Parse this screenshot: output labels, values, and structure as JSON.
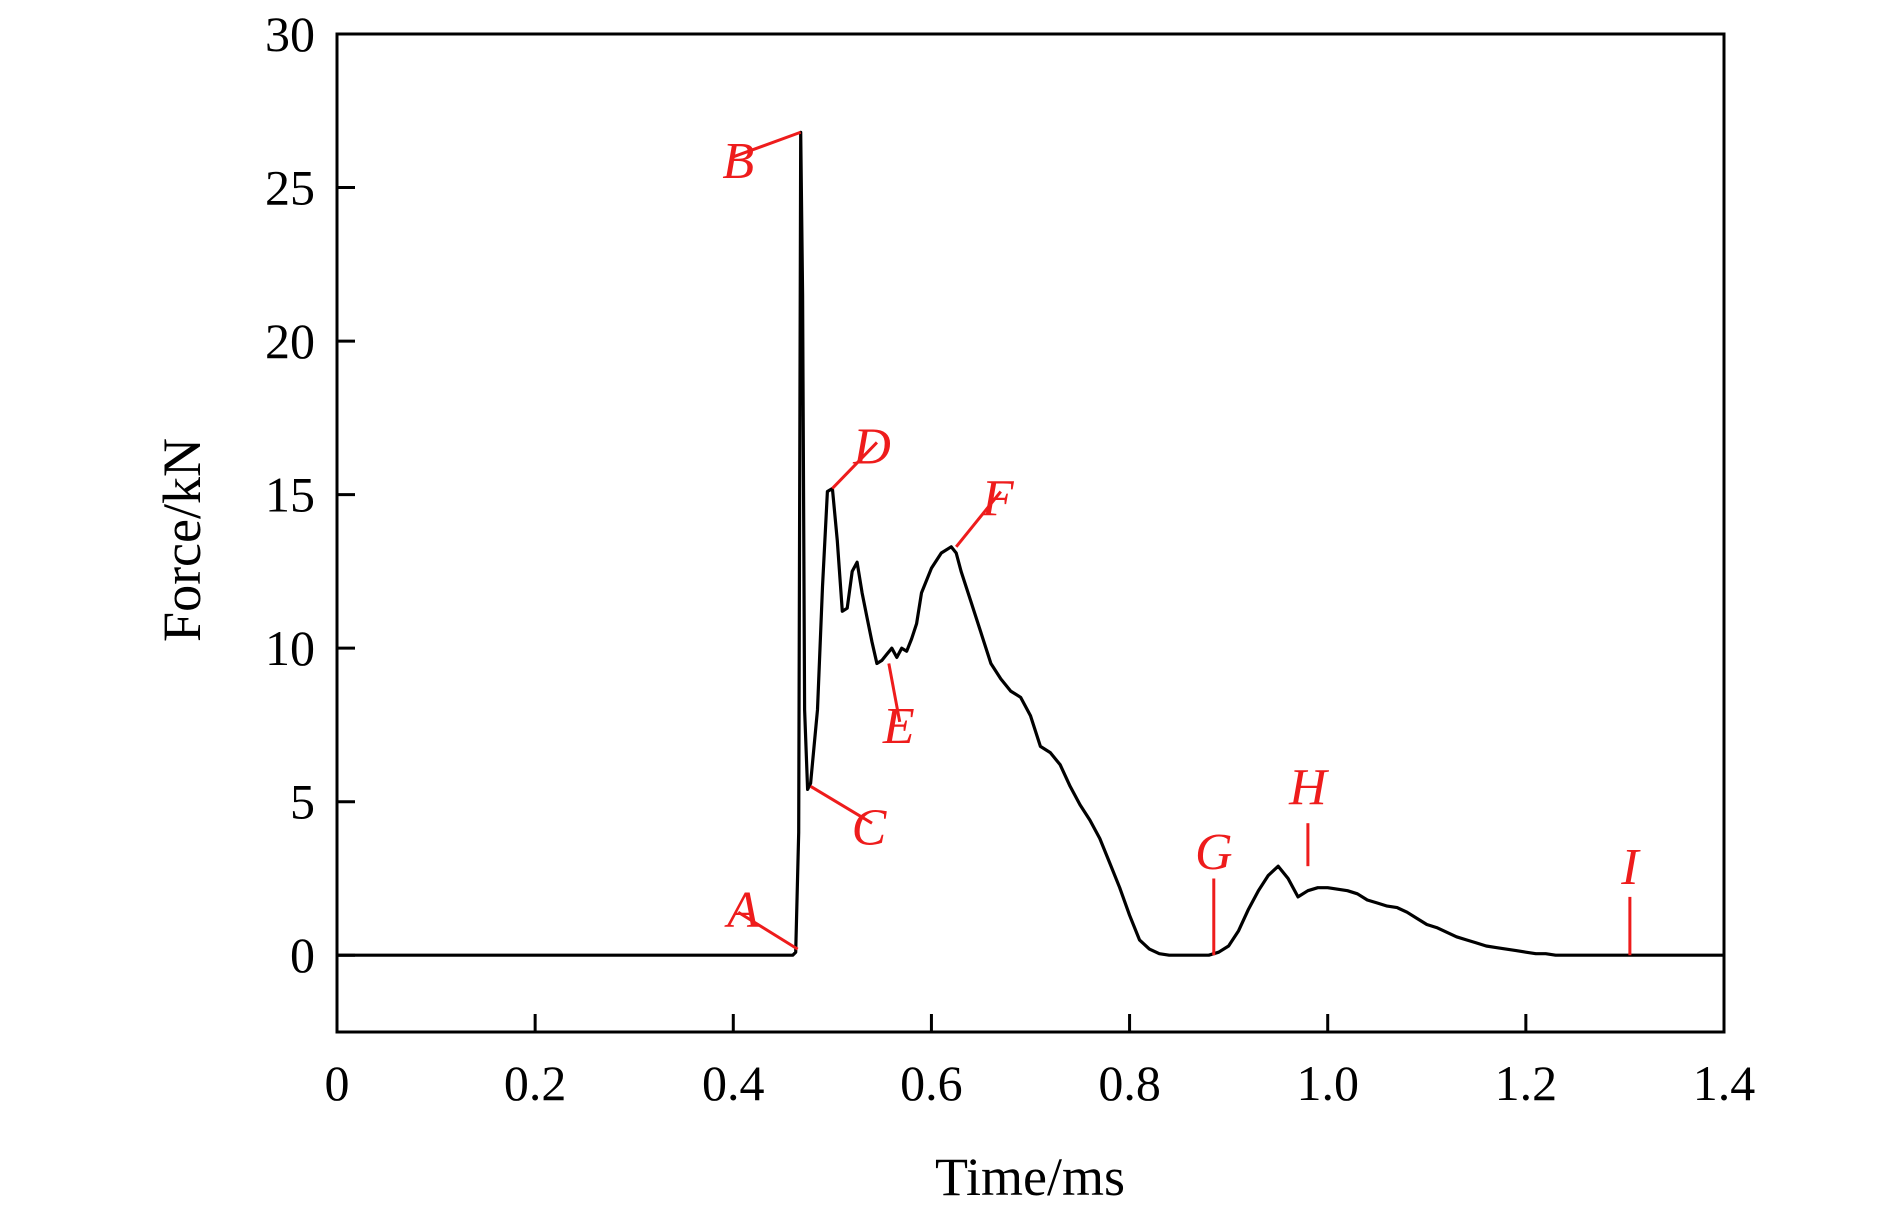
{
  "chart_data": {
    "type": "line",
    "xlabel": "Time/ms",
    "ylabel": "Force/kN",
    "xlim": [
      0,
      1.4
    ],
    "ylim": [
      -2.5,
      30
    ],
    "xticks": [
      0,
      0.2,
      0.4,
      0.6,
      0.8,
      1.0,
      1.2,
      1.4
    ],
    "xtick_labels": [
      "0",
      "0.2",
      "0.4",
      "0.6",
      "0.8",
      "1.0",
      "1.2",
      "1.4"
    ],
    "yticks": [
      0,
      5,
      10,
      15,
      20,
      25,
      30
    ],
    "ytick_labels": [
      "0",
      "5",
      "10",
      "15",
      "20",
      "25",
      "30"
    ],
    "grid": false,
    "line_color": "#000000",
    "annotation_color": "#ee1c1c",
    "series": [
      {
        "x": [
          0,
          0.46,
          0.463,
          0.466,
          0.468,
          0.47,
          0.472,
          0.475,
          0.478,
          0.485,
          0.49,
          0.495,
          0.5,
          0.505,
          0.51,
          0.515,
          0.52,
          0.525,
          0.53,
          0.535,
          0.54,
          0.545,
          0.55,
          0.555,
          0.56,
          0.565,
          0.57,
          0.575,
          0.58,
          0.585,
          0.59,
          0.6,
          0.61,
          0.62,
          0.625,
          0.63,
          0.64,
          0.65,
          0.66,
          0.67,
          0.68,
          0.69,
          0.7,
          0.71,
          0.72,
          0.73,
          0.74,
          0.75,
          0.76,
          0.77,
          0.78,
          0.79,
          0.8,
          0.81,
          0.82,
          0.83,
          0.84,
          0.85,
          0.86,
          0.87,
          0.88,
          0.89,
          0.9,
          0.91,
          0.92,
          0.93,
          0.94,
          0.95,
          0.96,
          0.97,
          0.98,
          0.99,
          1.0,
          1.01,
          1.02,
          1.03,
          1.04,
          1.05,
          1.06,
          1.07,
          1.08,
          1.09,
          1.1,
          1.11,
          1.12,
          1.13,
          1.14,
          1.15,
          1.16,
          1.17,
          1.18,
          1.19,
          1.2,
          1.21,
          1.22,
          1.23,
          1.24,
          1.25,
          1.26,
          1.27,
          1.28,
          1.29,
          1.3,
          1.31,
          1.32,
          1.33,
          1.34,
          1.35,
          1.36,
          1.37,
          1.38,
          1.39,
          1.4
        ],
        "y": [
          0,
          0,
          0.1,
          4,
          26.8,
          21.5,
          8,
          5.4,
          5.6,
          8,
          12,
          15.1,
          15.2,
          13.5,
          11.2,
          11.3,
          12.5,
          12.8,
          11.8,
          11,
          10.2,
          9.5,
          9.6,
          9.8,
          10,
          9.7,
          10,
          9.9,
          10.3,
          10.8,
          11.8,
          12.6,
          13.1,
          13.3,
          13.1,
          12.5,
          11.5,
          10.5,
          9.5,
          9,
          8.6,
          8.4,
          7.8,
          6.8,
          6.6,
          6.2,
          5.5,
          4.9,
          4.4,
          3.8,
          3.0,
          2.2,
          1.3,
          0.5,
          0.2,
          0.05,
          0,
          0,
          0,
          0,
          0,
          0.1,
          0.3,
          0.8,
          1.5,
          2.1,
          2.6,
          2.9,
          2.5,
          1.9,
          2.1,
          2.2,
          2.2,
          2.15,
          2.1,
          2.0,
          1.8,
          1.7,
          1.6,
          1.55,
          1.4,
          1.2,
          1.0,
          0.9,
          0.75,
          0.6,
          0.5,
          0.4,
          0.3,
          0.25,
          0.2,
          0.15,
          0.1,
          0.05,
          0.05,
          0,
          0,
          0,
          0,
          0,
          0,
          0,
          0,
          0,
          0,
          0,
          0,
          0,
          0,
          0,
          0,
          0,
          0
        ]
      }
    ],
    "annotations": [
      {
        "label": "A",
        "x": 0.465,
        "y": 0.2,
        "tx": 0.405,
        "ty": 1.4,
        "lx": 0.41,
        "ly": 1.5
      },
      {
        "label": "B",
        "x": 0.468,
        "y": 26.8,
        "tx": 0.4,
        "ty": 26.0,
        "lx": 0.405,
        "ly": 25.9
      },
      {
        "label": "C",
        "x": 0.478,
        "y": 5.5,
        "tx": 0.54,
        "ty": 4.3,
        "lx": 0.537,
        "ly": 4.2
      },
      {
        "label": "D",
        "x": 0.5,
        "y": 15.2,
        "tx": 0.545,
        "ty": 16.7,
        "lx": 0.54,
        "ly": 16.6
      },
      {
        "label": "E",
        "x": 0.557,
        "y": 9.5,
        "tx": 0.568,
        "ty": 7.6,
        "lx": 0.567,
        "ly": 7.5
      },
      {
        "label": "F",
        "x": 0.625,
        "y": 13.3,
        "tx": 0.67,
        "ty": 15.1,
        "lx": 0.667,
        "ly": 14.9
      },
      {
        "label": "G",
        "x": 0.885,
        "y": 0,
        "tx": 0.885,
        "ty": 2.5,
        "lx": 0.885,
        "ly": 3.4
      },
      {
        "label": "H",
        "x": 0.98,
        "y": 2.9,
        "tx": 0.98,
        "ty": 4.3,
        "lx": 0.98,
        "ly": 5.5
      },
      {
        "label": "I",
        "x": 1.305,
        "y": 0,
        "tx": 1.305,
        "ty": 1.9,
        "lx": 1.305,
        "ly": 2.9
      }
    ]
  }
}
